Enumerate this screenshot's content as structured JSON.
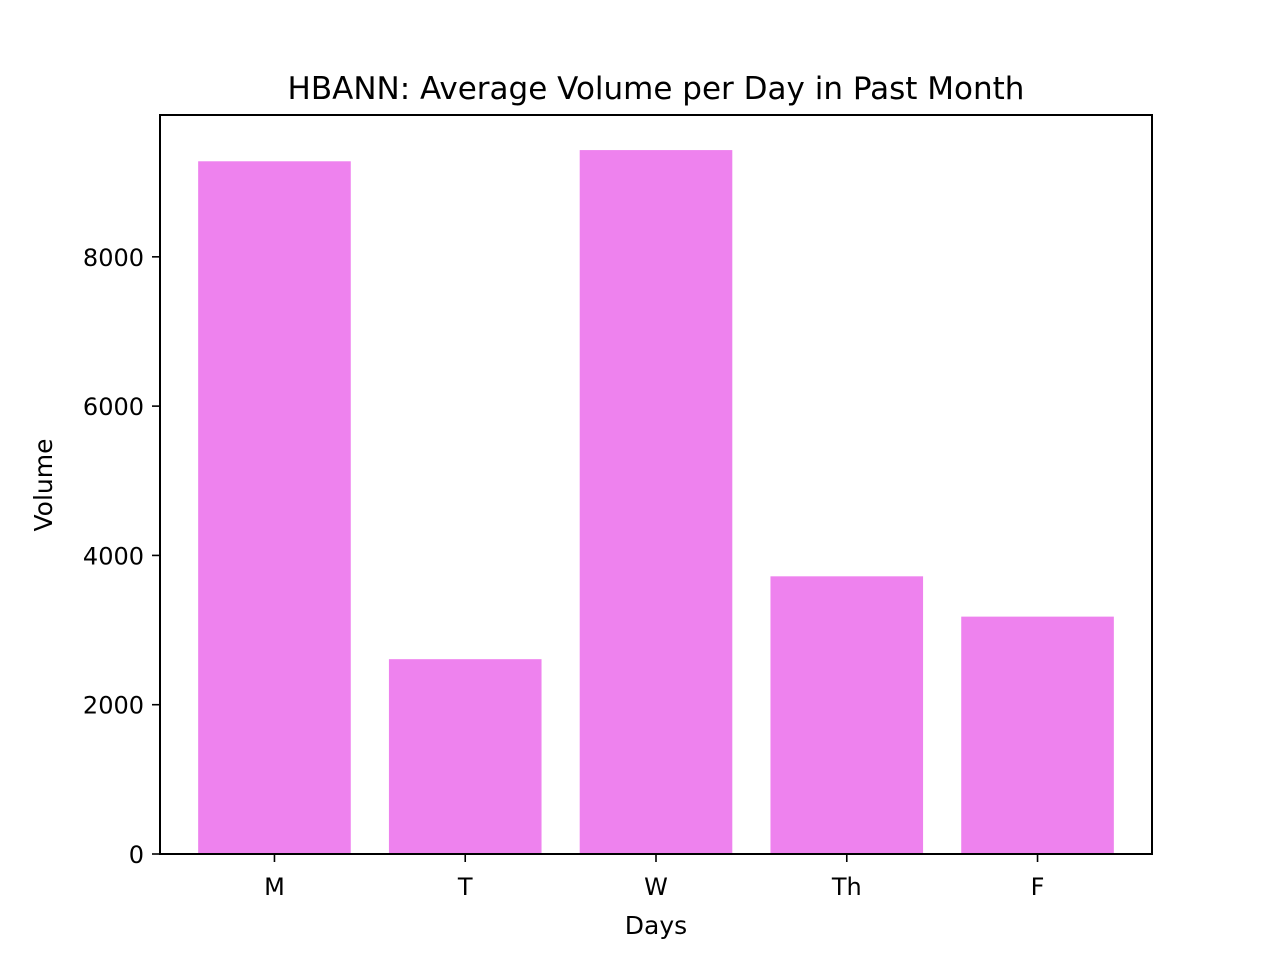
{
  "chart_data": {
    "type": "bar",
    "title": "HBANN: Average Volume per Day in Past Month",
    "xlabel": "Days",
    "ylabel": "Volume",
    "categories": [
      "M",
      "T",
      "W",
      "Th",
      "F"
    ],
    "values": [
      9280,
      2610,
      9430,
      3720,
      3180
    ],
    "ylim": [
      0,
      9900
    ],
    "yticks": [
      0,
      2000,
      4000,
      6000,
      8000
    ],
    "bar_color": "#ee82ee",
    "grid": false,
    "legend": false
  }
}
